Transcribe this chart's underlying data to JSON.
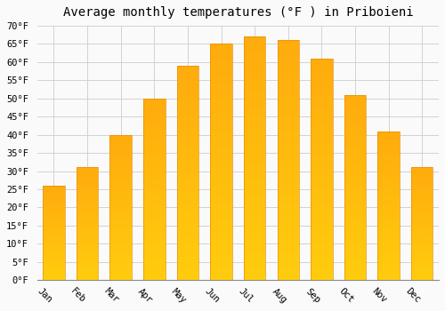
{
  "title": "Average monthly temperatures (°F ) in Priboieni",
  "months": [
    "Jan",
    "Feb",
    "Mar",
    "Apr",
    "May",
    "Jun",
    "Jul",
    "Aug",
    "Sep",
    "Oct",
    "Nov",
    "Dec"
  ],
  "values": [
    26,
    31,
    40,
    50,
    59,
    65,
    67,
    66,
    61,
    51,
    41,
    31
  ],
  "bar_color_top": "#FFB300",
  "bar_color_bottom": "#FFA000",
  "bar_edge_color": "#E8900A",
  "background_color": "#FAFAFA",
  "grid_color": "#CCCCCC",
  "ylim": [
    0,
    70
  ],
  "yticks": [
    0,
    5,
    10,
    15,
    20,
    25,
    30,
    35,
    40,
    45,
    50,
    55,
    60,
    65,
    70
  ],
  "title_fontsize": 10,
  "tick_fontsize": 7.5,
  "xlabel_rotation": -45,
  "font_family": "monospace"
}
